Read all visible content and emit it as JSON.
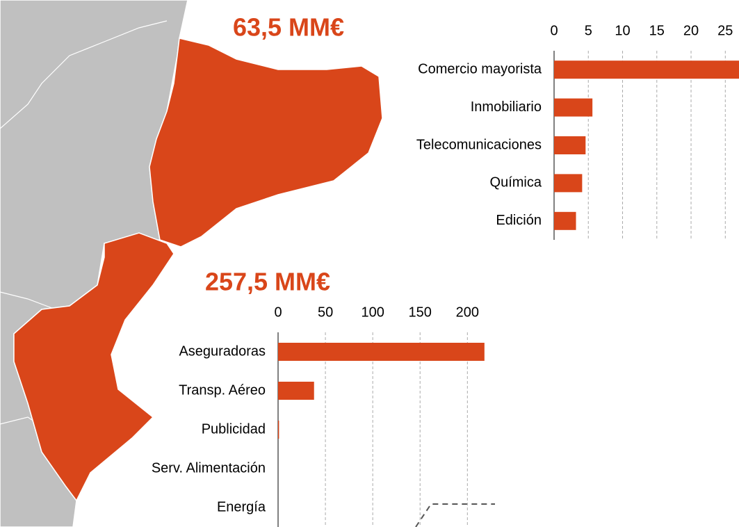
{
  "chart_data": [
    {
      "type": "bar",
      "orientation": "horizontal",
      "title": "63,5 MM€",
      "color": "#d9461a",
      "categories": [
        "Comercio mayorista",
        "Inmobiliario",
        "Telecomunicaciones",
        "Química",
        "Edición"
      ],
      "values": [
        27,
        5.6,
        4.6,
        4.1,
        3.2
      ],
      "xlim": [
        0,
        27
      ],
      "xticks": [
        0,
        5,
        10,
        15,
        20,
        25
      ],
      "grid": true
    },
    {
      "type": "bar",
      "orientation": "horizontal",
      "title": "257,5 MM€",
      "color": "#d9461a",
      "categories": [
        "Aseguradoras",
        "Transp. Aéreo",
        "Publicidad",
        "Serv. Alimentación",
        "Energía"
      ],
      "values": [
        218,
        38,
        1,
        0,
        0
      ],
      "xlim": [
        0,
        224
      ],
      "xticks": [
        0,
        50,
        100,
        150,
        200
      ],
      "grid": true
    }
  ]
}
